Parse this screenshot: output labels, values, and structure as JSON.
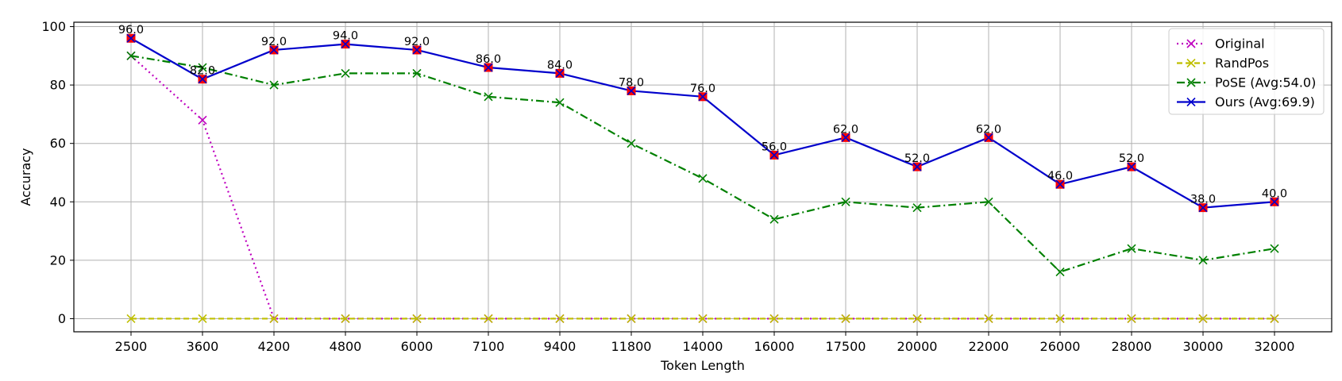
{
  "chart_data": {
    "type": "line",
    "xlabel": "Token Length",
    "ylabel": "Accuracy",
    "categories": [
      "2500",
      "3600",
      "4200",
      "4800",
      "6000",
      "7100",
      "9400",
      "11800",
      "14000",
      "16000",
      "17500",
      "20000",
      "22000",
      "26000",
      "28000",
      "30000",
      "32000"
    ],
    "ylim": [
      -4.5,
      101.5
    ],
    "yticks": [
      0,
      20,
      40,
      60,
      80,
      100
    ],
    "grid": true,
    "legend_position": "top-right",
    "series": [
      {
        "name": "Original",
        "color": "#bf00bf",
        "dash": "dotted",
        "marker": "x",
        "values": [
          90,
          68,
          0,
          0,
          0,
          0,
          0,
          0,
          0,
          0,
          0,
          0,
          0,
          0,
          0,
          0,
          0
        ]
      },
      {
        "name": "RandPos",
        "color": "#bfbf00",
        "dash": "dashed",
        "marker": "x",
        "values": [
          0,
          0,
          0,
          0,
          0,
          0,
          0,
          0,
          0,
          0,
          0,
          0,
          0,
          0,
          0,
          0,
          0
        ]
      },
      {
        "name": "PoSE (Avg:54.0)",
        "color": "#008000",
        "dash": "dashdot",
        "marker": "x",
        "values": [
          90,
          86,
          80,
          84,
          84,
          76,
          74,
          60,
          48,
          34,
          40,
          38,
          40,
          16,
          24,
          20,
          24
        ]
      },
      {
        "name": "Ours (Avg:69.9)",
        "color": "#0000cc",
        "dash": "solid",
        "marker": "x",
        "highlight_color": "#ff0000",
        "values": [
          96,
          82,
          92,
          94,
          92,
          86,
          84,
          78,
          76,
          56,
          62,
          52,
          62,
          46,
          52,
          38,
          40
        ],
        "data_labels": [
          "96.0",
          "82.0",
          "92.0",
          "94.0",
          "92.0",
          "86.0",
          "84.0",
          "78.0",
          "76.0",
          "56.0",
          "62.0",
          "52.0",
          "62.0",
          "46.0",
          "52.0",
          "38.0",
          "40.0"
        ]
      }
    ]
  }
}
